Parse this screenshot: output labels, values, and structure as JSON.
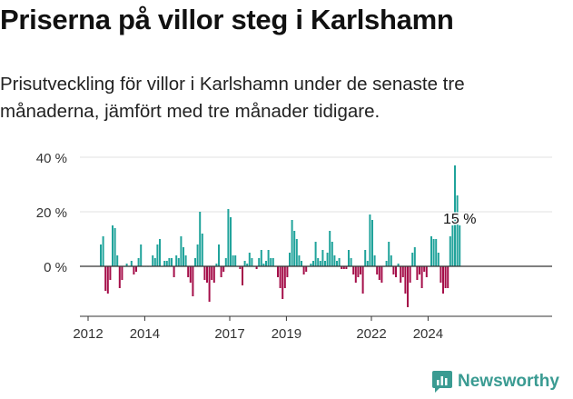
{
  "header": {
    "title": "Priserna på villor steg i Karlshamn",
    "subtitle": "Prisutveckling för villor i Karlshamn under de senaste tre månaderna, jämfört med tre månader tidigare."
  },
  "brand": {
    "name": "Newsworthy",
    "color": "#3a9b92"
  },
  "chart_data": {
    "type": "bar",
    "title": "",
    "xlabel": "",
    "ylabel": "",
    "ylim": [
      -18,
      42
    ],
    "y_ticks": [
      {
        "value": 40,
        "label": "40 %"
      },
      {
        "value": 20,
        "label": "20 %"
      },
      {
        "value": 0,
        "label": "0 %"
      }
    ],
    "x_ticks": [
      {
        "year": 2012,
        "label": "2012"
      },
      {
        "year": 2014,
        "label": "2014"
      },
      {
        "year": 2017,
        "label": "2017"
      },
      {
        "year": 2019,
        "label": "2019"
      },
      {
        "year": 2022,
        "label": "2022"
      },
      {
        "year": 2024,
        "label": "2024"
      }
    ],
    "series_start": "2012-06",
    "frequency": "monthly",
    "colors": {
      "positive": "#20a39b",
      "negative": "#a50e49",
      "axis": "#333333",
      "grid": "#e0e0e0"
    },
    "annotation": {
      "label": "15 %",
      "value": 15
    },
    "values": [
      8,
      11,
      -9,
      -10,
      -5,
      15,
      14,
      4,
      -8,
      -5,
      0,
      1,
      0,
      2,
      -3,
      -2,
      3,
      8,
      0,
      0,
      0,
      0,
      4,
      3,
      8,
      10,
      0,
      2,
      2,
      3,
      3,
      -4,
      4,
      3,
      11,
      7,
      4,
      -4,
      -6,
      -11,
      3,
      8,
      20,
      12,
      -5,
      -6,
      -13,
      -5,
      -6,
      1,
      8,
      -4,
      -2,
      3,
      21,
      18,
      4,
      4,
      0,
      -1,
      -7,
      2,
      1,
      5,
      3,
      0,
      -1,
      3,
      6,
      1,
      2,
      6,
      3,
      3,
      0,
      -4,
      -8,
      -12,
      -8,
      -4,
      5,
      17,
      13,
      10,
      4,
      2,
      -3,
      -2,
      0,
      1,
      2,
      9,
      3,
      2,
      6,
      2,
      5,
      13,
      9,
      4,
      2,
      3,
      -1,
      -1,
      -1,
      6,
      3,
      -3,
      -6,
      -4,
      -3,
      -10,
      6,
      2,
      19,
      17,
      4,
      -3,
      -5,
      -6,
      0,
      2,
      9,
      4,
      -3,
      -4,
      1,
      -6,
      -4,
      -10,
      -15,
      -6,
      5,
      7,
      -5,
      -3,
      -8,
      -2,
      -4,
      0,
      11,
      10,
      10,
      5,
      -6,
      -10,
      -8,
      -8,
      11,
      15,
      37,
      26,
      15
    ]
  }
}
